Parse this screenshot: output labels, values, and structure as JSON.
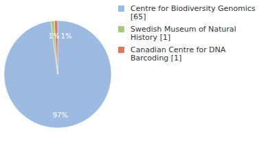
{
  "chart_data": {
    "type": "pie",
    "categories": [
      "Centre for Biodiversity Genomics [65]",
      "Swedish Museum of Natural History [1]",
      "Canadian Centre for DNA Barcoding [1]"
    ],
    "values": [
      97,
      1,
      1
    ],
    "value_labels": [
      "97%",
      "1%",
      "1%"
    ],
    "colors": [
      "#9dbbe0",
      "#a6c97e",
      "#d97a5f"
    ],
    "data_labels": true,
    "legend": "upper right"
  }
}
